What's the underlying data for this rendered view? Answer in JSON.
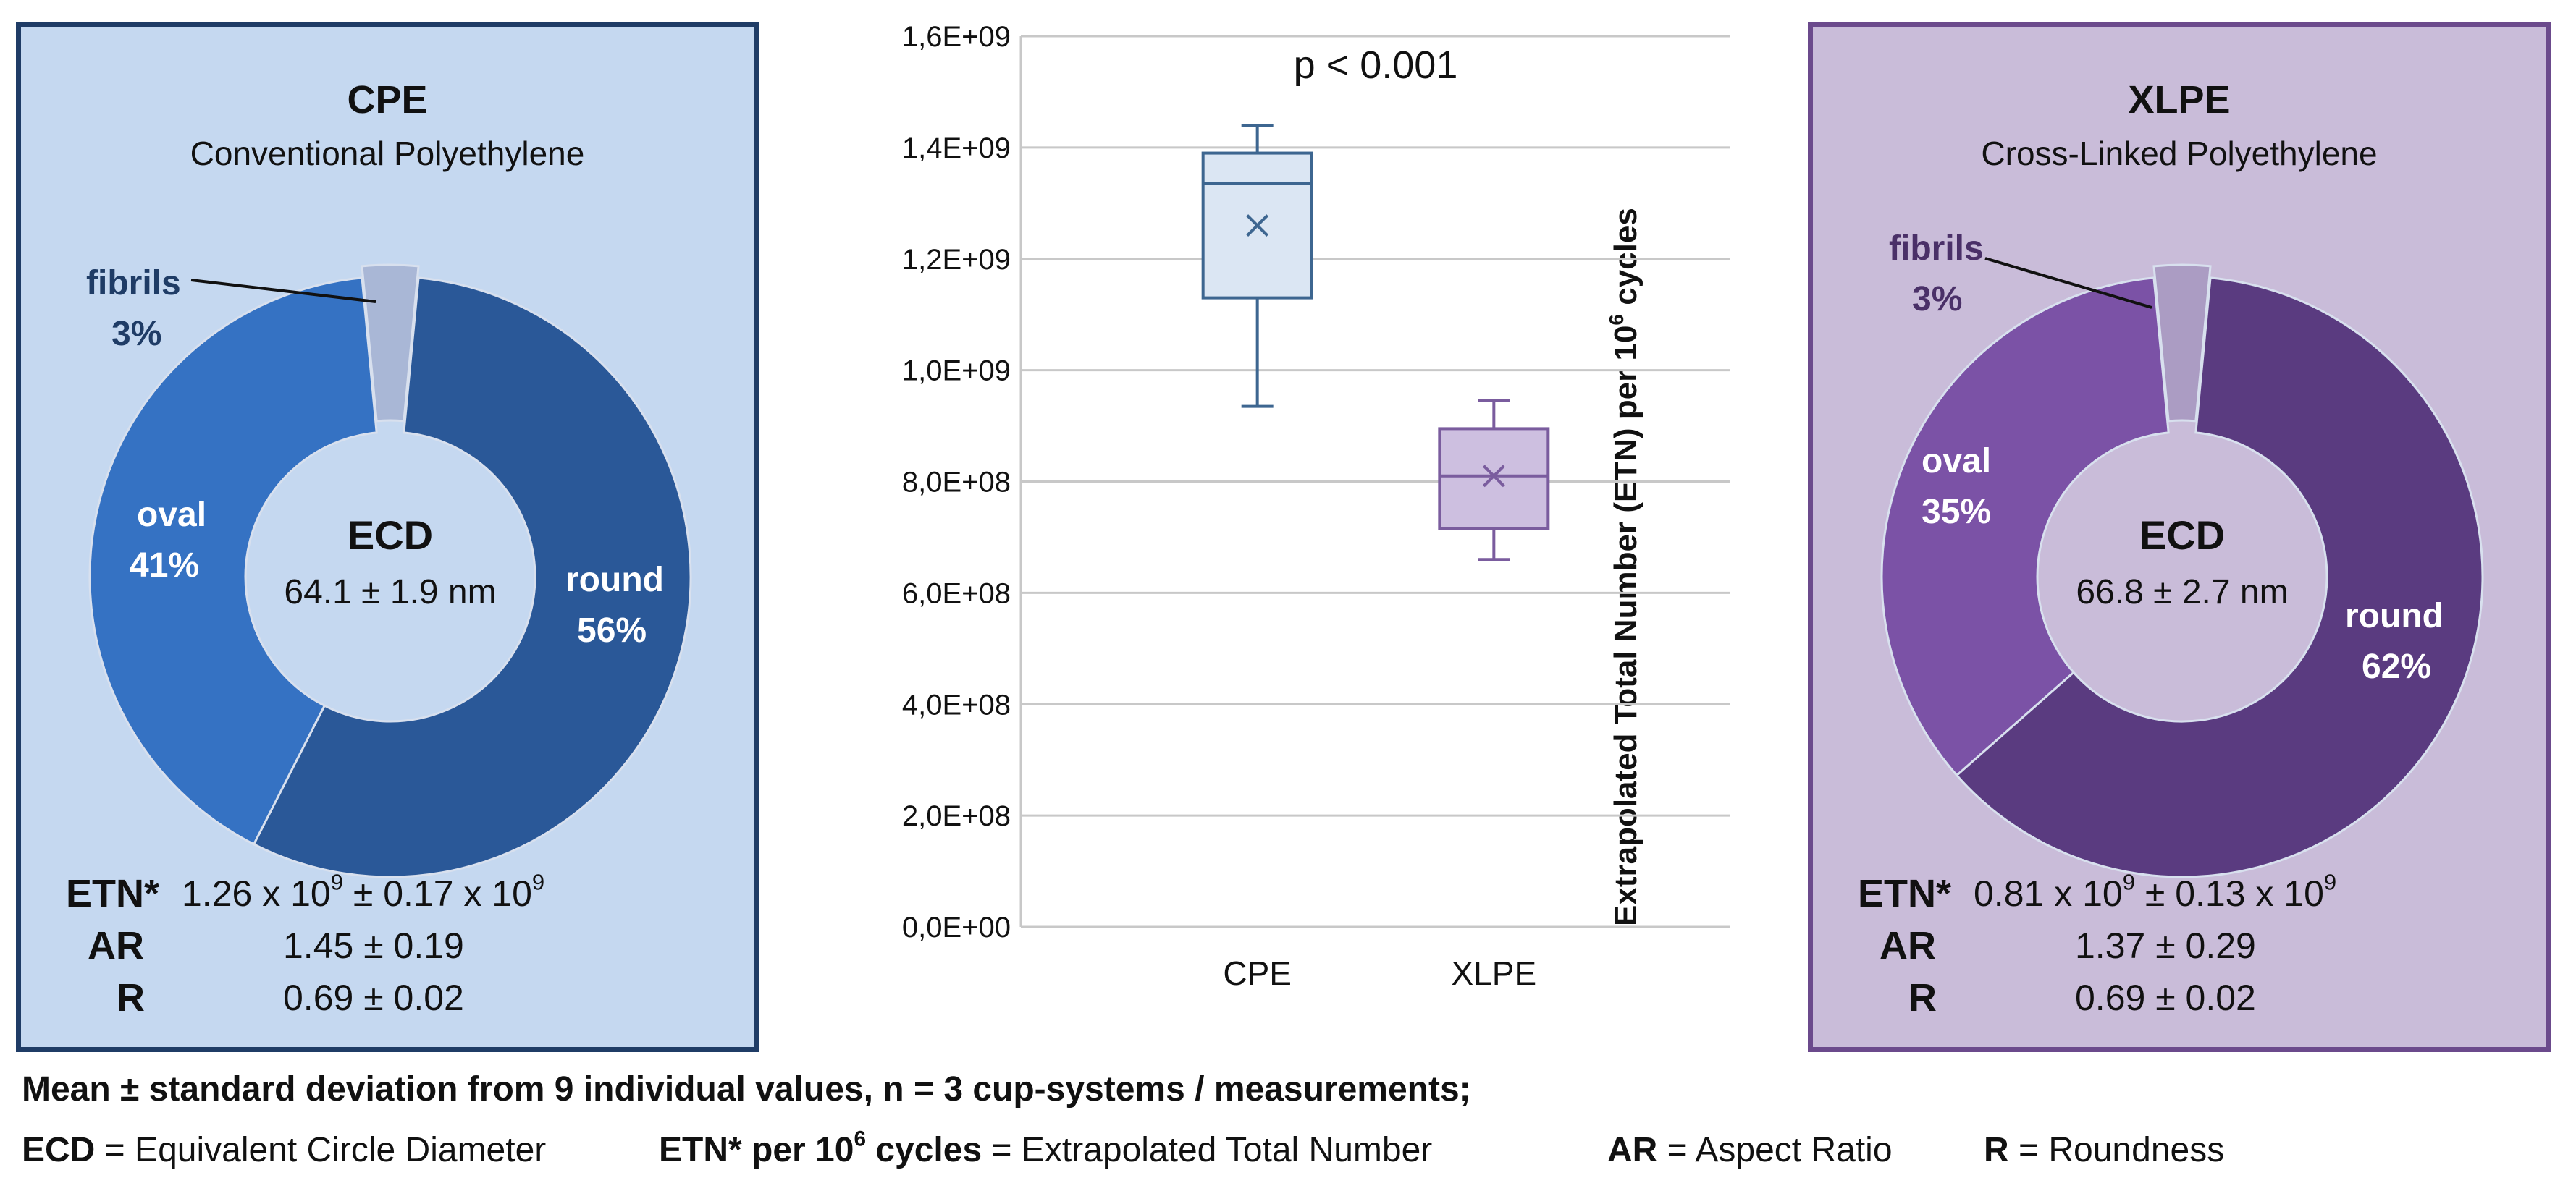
{
  "chart_data": [
    {
      "type": "pie",
      "title": "CPE",
      "subtitle": "Conventional Polyethylene",
      "center_title": "ECD",
      "center_value": "64.1 ± 1.9 nm",
      "slices": [
        {
          "name": "fibrils",
          "value": 3,
          "label": "3%",
          "color": "#a9b7d6"
        },
        {
          "name": "round",
          "value": 56,
          "label": "56%",
          "color": "#2a5898"
        },
        {
          "name": "oval",
          "value": 41,
          "label": "41%",
          "color": "#3572c3"
        }
      ],
      "stats": [
        {
          "label": "ETN*",
          "value": "1.26 x 10^9 ± 0.17 x 10^9",
          "base1": "1.26 x 10",
          "exp1": "9",
          "mid": " ± 0.17 x 10",
          "exp2": "9"
        },
        {
          "label": "AR",
          "value": "1.45 ± 0.19"
        },
        {
          "label": "R",
          "value": "0.69 ± 0.02"
        }
      ]
    },
    {
      "type": "box",
      "annotation": "p < 0.001",
      "ylabel_base": "Extrapolated Total Number (ETN) per 10",
      "ylabel_exp": "6",
      "ylabel_tail": " cycles",
      "ylim": [
        0,
        1600000000
      ],
      "yticks": [
        {
          "value": 0,
          "label": "0,0E+00"
        },
        {
          "value": 200000000,
          "label": "2,0E+08"
        },
        {
          "value": 400000000,
          "label": "4,0E+08"
        },
        {
          "value": 600000000,
          "label": "6,0E+08"
        },
        {
          "value": 800000000,
          "label": "8,0E+08"
        },
        {
          "value": 1000000000,
          "label": "1,0E+09"
        },
        {
          "value": 1200000000,
          "label": "1,2E+09"
        },
        {
          "value": 1400000000,
          "label": "1,4E+09"
        },
        {
          "value": 1600000000,
          "label": "1,6E+09"
        }
      ],
      "categories": [
        "CPE",
        "XLPE"
      ],
      "boxes": [
        {
          "name": "CPE",
          "min": 935000000,
          "q1": 1130000000,
          "median": 1335000000,
          "q3": 1390000000,
          "max": 1440000000,
          "mean": 1260000000,
          "fill": "#dbe6f3",
          "stroke": "#3d6690"
        },
        {
          "name": "XLPE",
          "min": 660000000,
          "q1": 715000000,
          "median": 810000000,
          "q3": 895000000,
          "max": 945000000,
          "mean": 810000000,
          "fill": "#cdbfe0",
          "stroke": "#7a5c9e"
        }
      ]
    },
    {
      "type": "pie",
      "title": "XLPE",
      "subtitle": "Cross-Linked Polyethylene",
      "center_title": "ECD",
      "center_value": "66.8 ± 2.7 nm",
      "slices": [
        {
          "name": "fibrils",
          "value": 3,
          "label": "3%",
          "color": "#ab9cc3"
        },
        {
          "name": "round",
          "value": 62,
          "label": "62%",
          "color": "#5a3b80"
        },
        {
          "name": "oval",
          "value": 35,
          "label": "35%",
          "color": "#7b52a6"
        }
      ],
      "stats": [
        {
          "label": "ETN*",
          "value": "0.81 x 10^9 ± 0.13 x 10^9",
          "base1": "0.81 x 10",
          "exp1": "9",
          "mid": " ± 0.13 x 10",
          "exp2": "9"
        },
        {
          "label": "AR",
          "value": "1.37 ± 0.29"
        },
        {
          "label": "R",
          "value": "0.69 ± 0.02"
        }
      ]
    }
  ],
  "footnote": {
    "line1": "Mean ± standard deviation from 9 individual  values, n = 3 cup-systems / measurements;",
    "ecd_abbr": "ECD",
    "ecd_def": " = Equivalent Circle Diameter",
    "etn_abbr_base": "ETN* per 10",
    "etn_abbr_exp": "6",
    "etn_abbr_tail": " cycles",
    "etn_def": " = Extrapolated Total Number",
    "ar_abbr": "AR",
    "ar_def": " = Aspect Ratio",
    "r_abbr": "R",
    "r_def": " = Roundness"
  }
}
